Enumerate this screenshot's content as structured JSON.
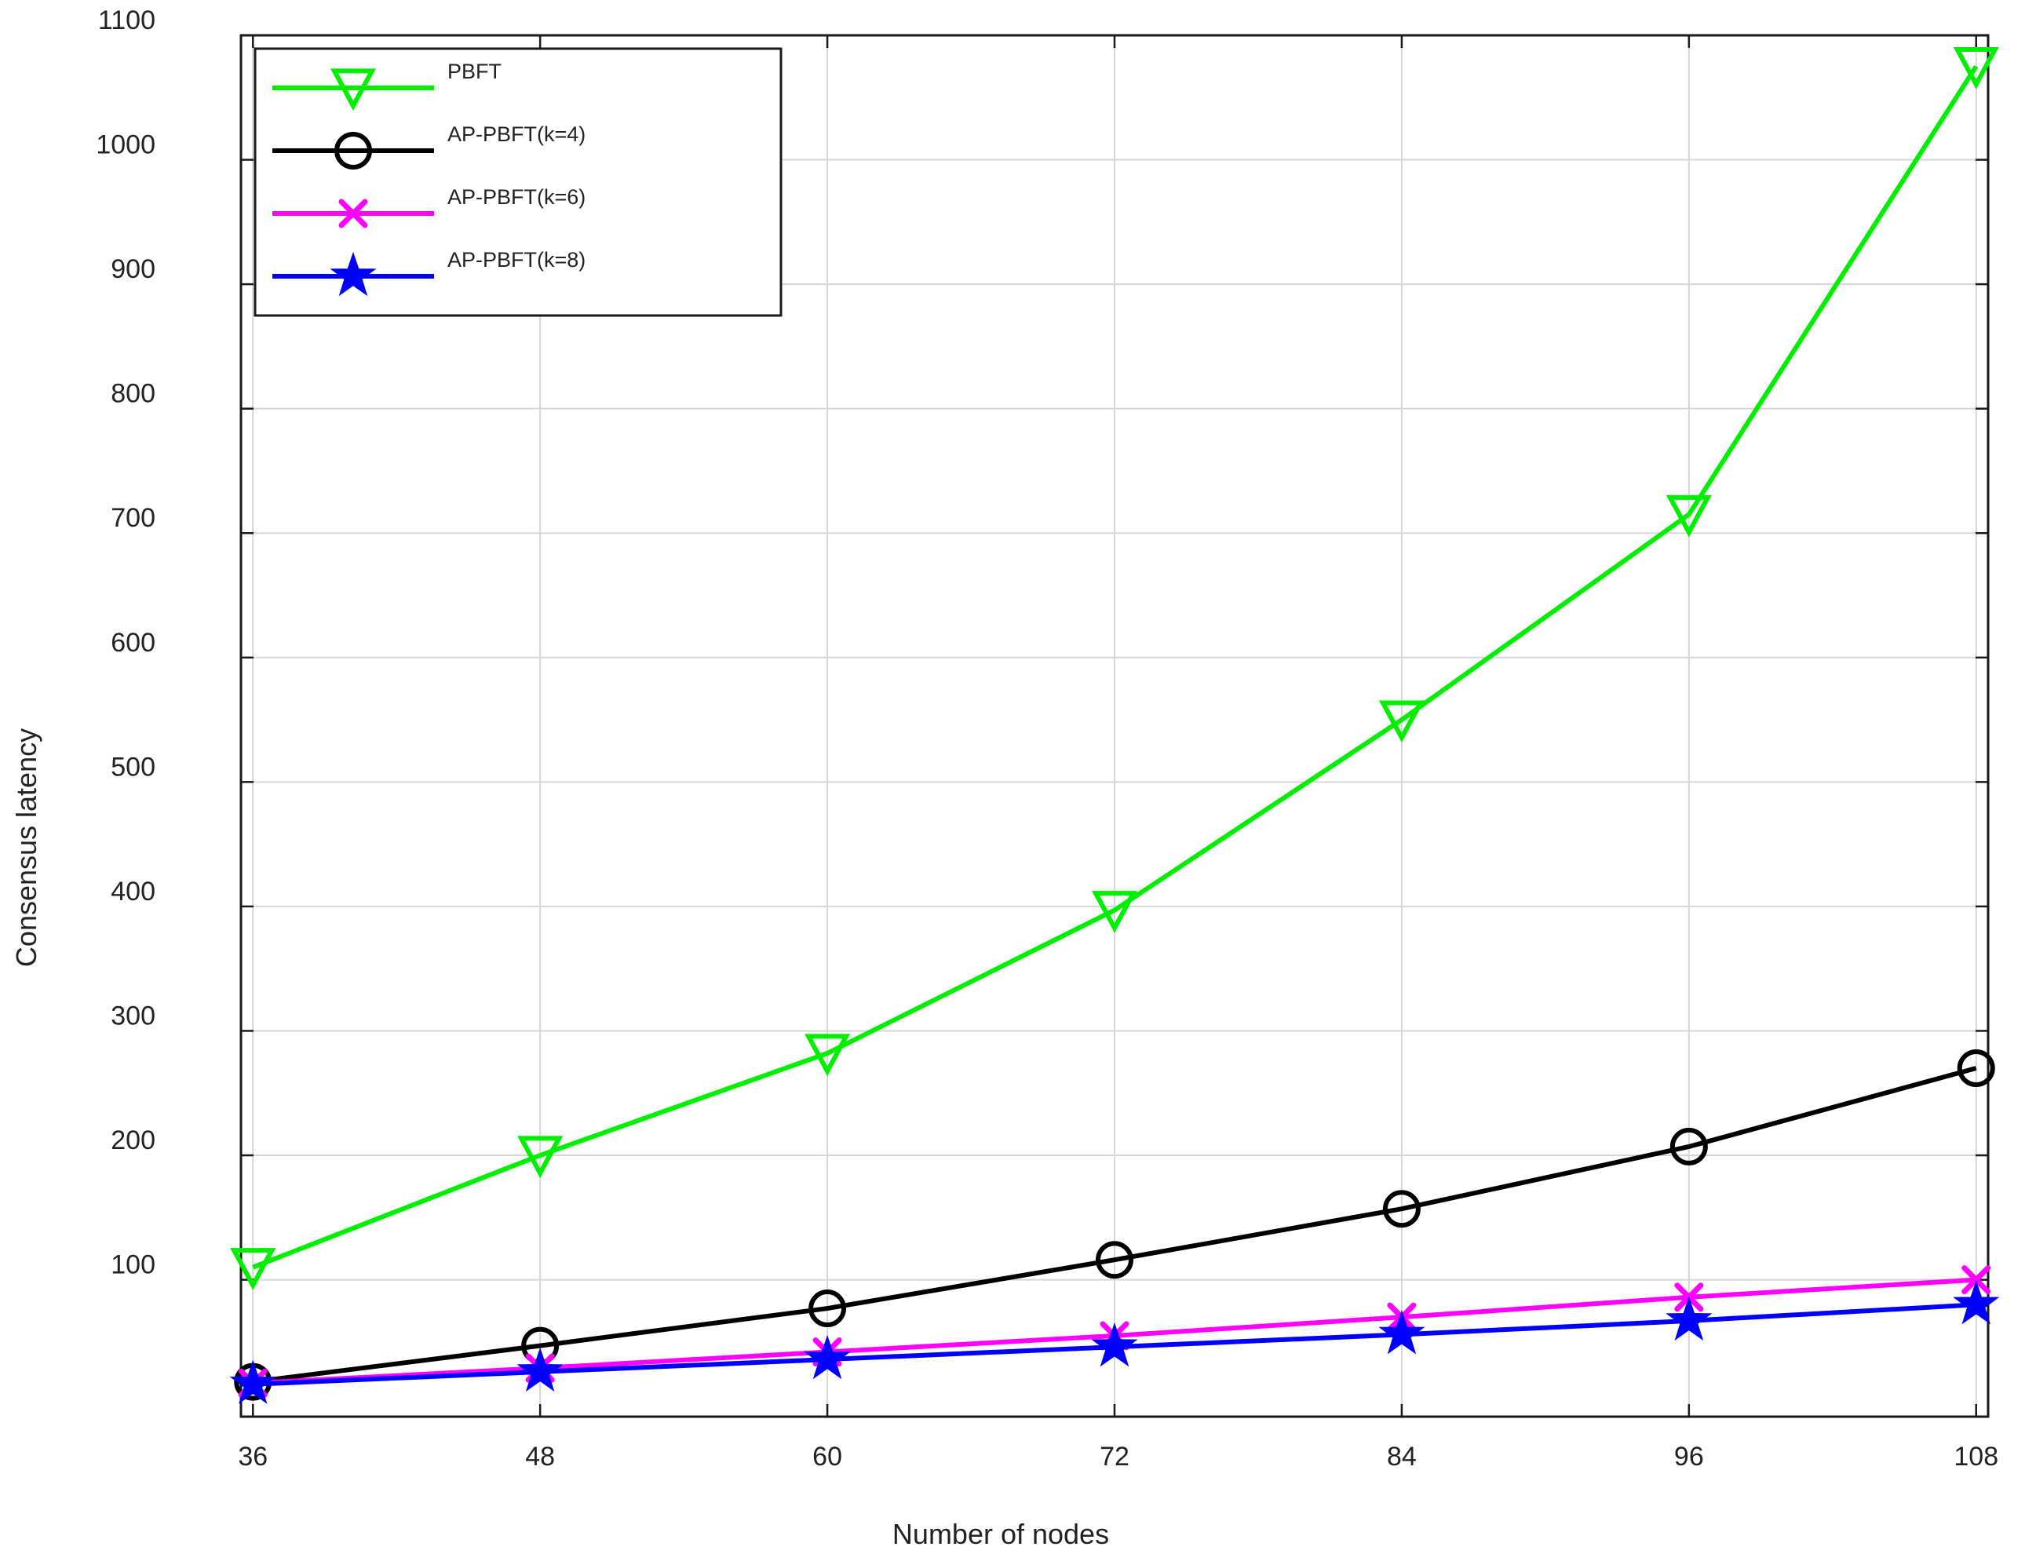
{
  "chart_data": {
    "type": "line",
    "xlabel": "Number of nodes",
    "ylabel": "Consensus latency",
    "x": [
      36,
      48,
      60,
      72,
      84,
      96,
      108
    ],
    "xlim": [
      35.5,
      108.5
    ],
    "ylim": [
      -10,
      1100
    ],
    "xticks": [
      "36",
      "48",
      "60",
      "72",
      "84",
      "96",
      "108"
    ],
    "yticks": [
      "100",
      "200",
      "300",
      "400",
      "500",
      "600",
      "700",
      "800",
      "900",
      "1000",
      "1100"
    ],
    "grid": true,
    "legend_position": "top-left",
    "series": [
      {
        "name": "PBFT",
        "color": "#00ee00",
        "marker": "triangle-down",
        "values": [
          110,
          200,
          282,
          397,
          550,
          715,
          1075
        ]
      },
      {
        "name": "AP-PBFT(k=4)",
        "color": "#000000",
        "marker": "circle",
        "values": [
          18,
          47,
          77,
          116,
          157,
          207,
          270
        ]
      },
      {
        "name": "AP-PBFT(k=6)",
        "color": "#ff00ff",
        "marker": "x",
        "values": [
          17,
          29,
          42,
          55,
          70,
          86,
          100
        ]
      },
      {
        "name": "AP-PBFT(k=8)",
        "color": "#0000ff",
        "marker": "star",
        "values": [
          16,
          26,
          36,
          46,
          56,
          67,
          80
        ]
      }
    ]
  }
}
